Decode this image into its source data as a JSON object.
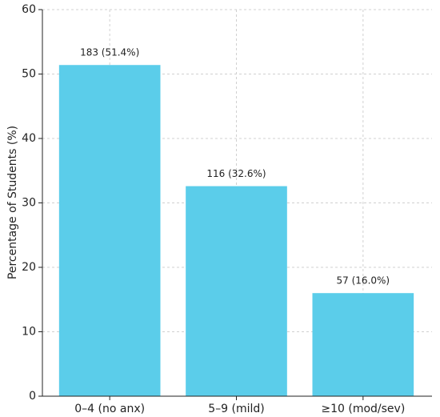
{
  "chart_data": {
    "type": "bar",
    "y_label": "Percentage of Students (%)",
    "categories": [
      "0–4 (no anx)",
      "5–9 (mild)",
      "≥10 (mod/sev)"
    ],
    "values": [
      51.4,
      32.6,
      16.0
    ],
    "value_labels": [
      "183 (51.4%)",
      "116 (32.6%)",
      "57 (16.0%)"
    ],
    "color": "#5bcdea",
    "ylim": [
      0,
      60
    ],
    "yticks": [
      0,
      10,
      20,
      30,
      40,
      50,
      60
    ],
    "grid": true
  }
}
